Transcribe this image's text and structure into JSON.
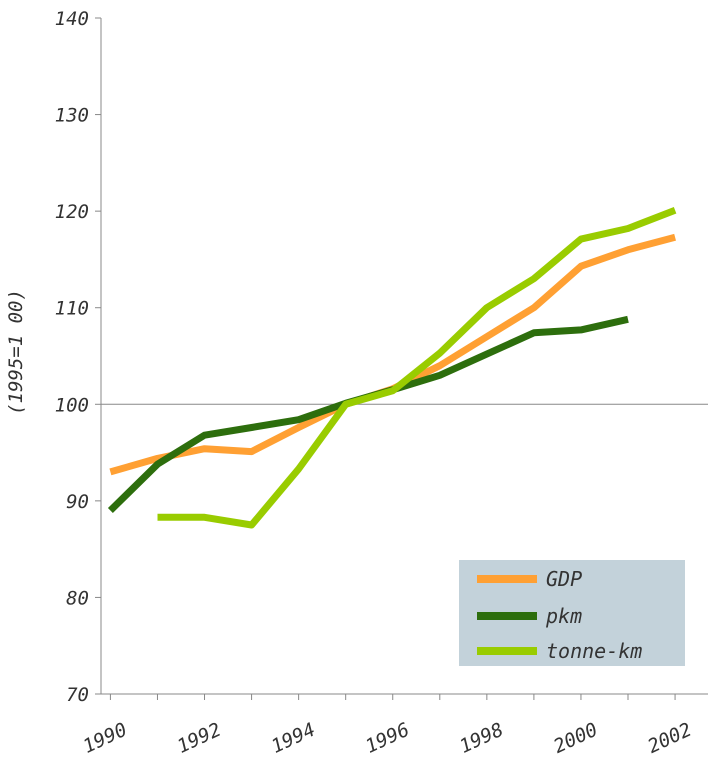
{
  "chart_data": {
    "type": "line",
    "title": "",
    "xlabel": "",
    "ylabel": "(1995=1 00)",
    "x": [
      1990,
      1991,
      1992,
      1993,
      1994,
      1995,
      1996,
      1997,
      1998,
      1999,
      2000,
      2001,
      2002
    ],
    "xlim": [
      1989.8,
      2002.7
    ],
    "ylim": [
      70,
      140
    ],
    "x_ticks": [
      1990,
      1992,
      1994,
      1996,
      1998,
      2000,
      2002
    ],
    "x_tick_labels": [
      "1990",
      "1992",
      "1994",
      "1996",
      "1998",
      "2000",
      "2002"
    ],
    "y_ticks": [
      70,
      80,
      90,
      100,
      110,
      120,
      130,
      140
    ],
    "y_tick_labels": [
      "70",
      "80",
      "90",
      "100",
      "110",
      "120",
      "130",
      "140"
    ],
    "reference_line": 100,
    "grid": false,
    "legend_position": "bottom-right",
    "series": [
      {
        "name": "GDP",
        "color": "#ffa033",
        "x": [
          1990,
          1991,
          1992,
          1993,
          1994,
          1995,
          1996,
          1997,
          1998,
          1999,
          2000,
          2001,
          2002
        ],
        "values": [
          93.0,
          94.4,
          95.4,
          95.1,
          97.6,
          100.0,
          101.6,
          104.0,
          107.0,
          110.0,
          114.3,
          116.0,
          117.3
        ]
      },
      {
        "name": "pkm",
        "color": "#2d6e0d",
        "x": [
          1990,
          1991,
          1992,
          1993,
          1994,
          1995,
          1996,
          1997,
          1998,
          1999,
          2000,
          2001
        ],
        "values": [
          89.0,
          93.8,
          96.8,
          97.6,
          98.4,
          100.1,
          101.5,
          103.0,
          105.2,
          107.4,
          107.7,
          108.8
        ]
      },
      {
        "name": "tonne-km",
        "color": "#99cc00",
        "x": [
          1991,
          1992,
          1993,
          1994,
          1995,
          1996,
          1997,
          1998,
          1999,
          2000,
          2001,
          2002
        ],
        "values": [
          88.3,
          88.3,
          87.5,
          93.3,
          100.0,
          101.4,
          105.3,
          110.0,
          113.0,
          117.1,
          118.2,
          120.1
        ]
      }
    ],
    "legend_background": "#c3d2da"
  }
}
